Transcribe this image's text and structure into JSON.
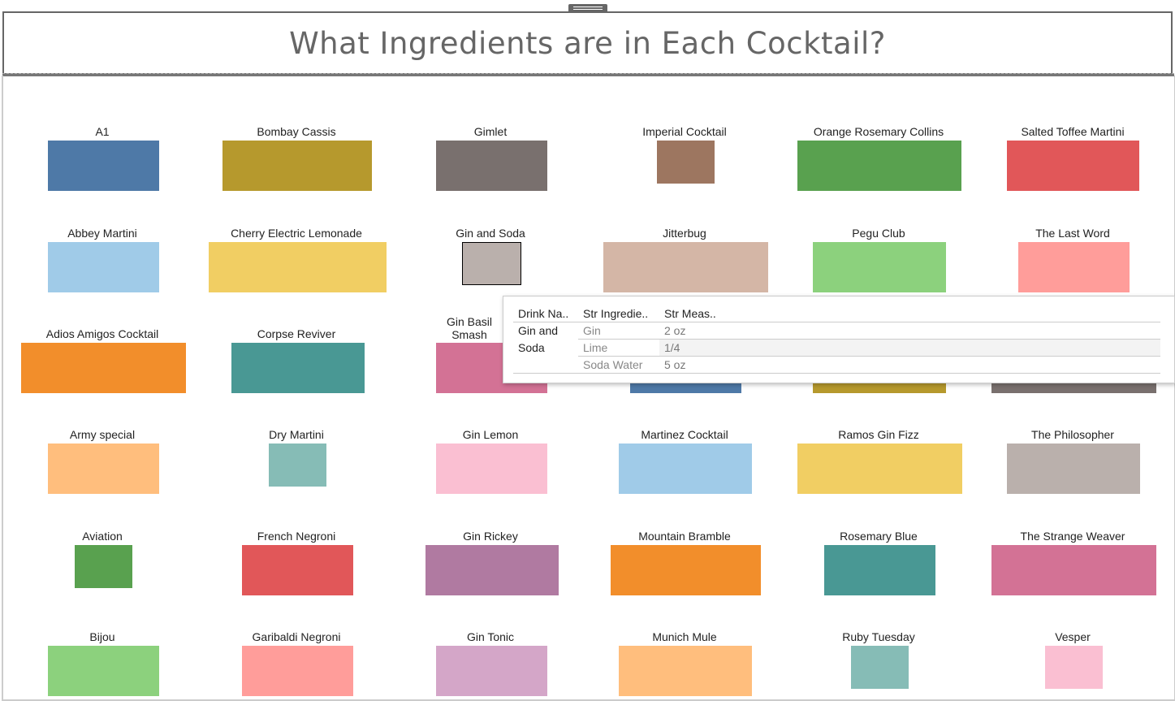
{
  "title": "What Ingredients are in Each Cocktail?",
  "cocktails": [
    {
      "name": "A1",
      "color": "#4e79a7"
    },
    {
      "name": "Bombay Cassis",
      "color": "#b6992d"
    },
    {
      "name": "Gimlet",
      "color": "#79706e"
    },
    {
      "name": "Imperial Cocktail",
      "color": "#9d7660"
    },
    {
      "name": "Orange Rosemary Collins",
      "color": "#59a14f"
    },
    {
      "name": "Salted Toffee Martini",
      "color": "#e15759"
    },
    {
      "name": "Abbey Martini",
      "color": "#a0cbe8"
    },
    {
      "name": "Cherry Electric Lemonade",
      "color": "#f1ce63"
    },
    {
      "name": "Gin and Soda",
      "color": "#bab0ac"
    },
    {
      "name": "Jitterbug",
      "color": "#d4b6a6"
    },
    {
      "name": "Pegu Club",
      "color": "#8cd17d"
    },
    {
      "name": "The Last Word",
      "color": "#ff9d9a"
    },
    {
      "name": "Adios Amigos Cocktail",
      "color": "#f28e2b"
    },
    {
      "name": "Corpse Reviver",
      "color": "#499894"
    },
    {
      "name": "Gin Basil Smash",
      "color": "#d37295"
    },
    {
      "name": "",
      "color": "#4e79a7"
    },
    {
      "name": "",
      "color": "#b6992d"
    },
    {
      "name": "",
      "color": "#79706e"
    },
    {
      "name": "Army special",
      "color": "#ffbe7d"
    },
    {
      "name": "Dry Martini",
      "color": "#86bcb6"
    },
    {
      "name": "Gin Lemon",
      "color": "#fabfd2"
    },
    {
      "name": "Martinez Cocktail",
      "color": "#a0cbe8"
    },
    {
      "name": "Ramos Gin Fizz",
      "color": "#f1ce63"
    },
    {
      "name": "The Philosopher",
      "color": "#bab0ac"
    },
    {
      "name": "Aviation",
      "color": "#59a14f"
    },
    {
      "name": "French Negroni",
      "color": "#e15759"
    },
    {
      "name": "Gin Rickey",
      "color": "#b07aa1"
    },
    {
      "name": "Mountain Bramble",
      "color": "#f28e2b"
    },
    {
      "name": "Rosemary Blue",
      "color": "#499894"
    },
    {
      "name": "The Strange Weaver",
      "color": "#d37295"
    },
    {
      "name": "Bijou",
      "color": "#8cd17d"
    },
    {
      "name": "Garibaldi Negroni",
      "color": "#ff9d9a"
    },
    {
      "name": "Gin Tonic",
      "color": "#d4a6c8"
    },
    {
      "name": "Munich Mule",
      "color": "#ffbe7d"
    },
    {
      "name": "Ruby Tuesday",
      "color": "#86bcb6"
    },
    {
      "name": "Vesper",
      "color": "#fabfd2"
    }
  ],
  "tooltip": {
    "headers": [
      "Drink Na..",
      "Str Ingredie..",
      "Str Meas.."
    ],
    "drink_line1": "Gin and",
    "drink_line2": "Soda",
    "rows": [
      {
        "ingredient": "Gin",
        "measure": "2 oz"
      },
      {
        "ingredient": "Lime",
        "measure": "1/4"
      },
      {
        "ingredient": "Soda Water",
        "measure": "5 oz"
      }
    ]
  }
}
